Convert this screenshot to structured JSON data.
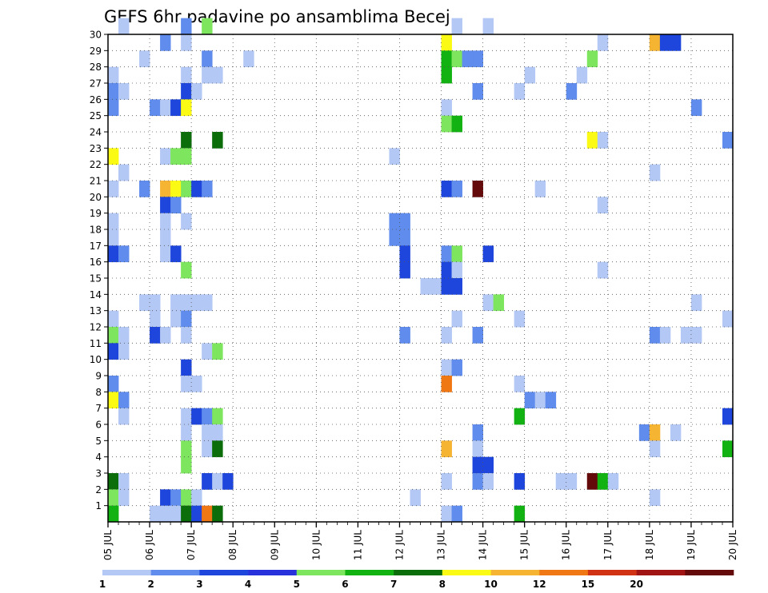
{
  "chart_data": {
    "type": "heatmap",
    "title": "GEFS 6hr padavine po ansamblima Becej",
    "xlabel": "",
    "ylabel": "",
    "x_range": [
      0,
      60
    ],
    "y_range": [
      0,
      30
    ],
    "y_ticks": [
      "1",
      "2",
      "3",
      "4",
      "5",
      "6",
      "7",
      "8",
      "9",
      "10",
      "11",
      "12",
      "13",
      "14",
      "15",
      "16",
      "17",
      "18",
      "19",
      "20",
      "21",
      "22",
      "23",
      "24",
      "25",
      "26",
      "27",
      "28",
      "29",
      "30"
    ],
    "x_ticks": [
      {
        "pos": 0,
        "label": "05 JUL"
      },
      {
        "pos": 4,
        "label": "06 JUL"
      },
      {
        "pos": 8,
        "label": "07 JUL"
      },
      {
        "pos": 12,
        "label": "08 JUL"
      },
      {
        "pos": 16,
        "label": "09 JUL"
      },
      {
        "pos": 20,
        "label": "10 JUL"
      },
      {
        "pos": 24,
        "label": "11 JUL"
      },
      {
        "pos": 28,
        "label": "12 JUL"
      },
      {
        "pos": 32,
        "label": "13 JUL"
      },
      {
        "pos": 36,
        "label": "14 JUL"
      },
      {
        "pos": 40,
        "label": "15 JUL"
      },
      {
        "pos": 44,
        "label": "16 JUL"
      },
      {
        "pos": 48,
        "label": "17 JUL"
      },
      {
        "pos": 52,
        "label": "18 JUL"
      },
      {
        "pos": 56,
        "label": "19 JUL"
      },
      {
        "pos": 60,
        "label": "20 JUL"
      }
    ],
    "grid": true,
    "legend_placement": "bottom",
    "color_scale": {
      "labels": [
        "1",
        "2",
        "3",
        "4",
        "5",
        "6",
        "7",
        "8",
        "10",
        "12",
        "15",
        "20"
      ],
      "colors": [
        "#b4c8f5",
        "#5f8ced",
        "#1e46dc",
        "#2832dc",
        "#7ee65e",
        "#12b212",
        "#0b6e0b",
        "#fafa14",
        "#f5b432",
        "#f07814",
        "#d23214",
        "#a01414",
        "#640a0a"
      ]
    },
    "cells": [
      [
        1,
        30,
        0
      ],
      [
        7,
        30,
        1
      ],
      [
        9,
        30,
        4
      ],
      [
        33,
        30,
        0
      ],
      [
        36,
        30,
        0
      ],
      [
        5,
        29,
        1
      ],
      [
        7,
        29,
        0
      ],
      [
        32,
        29,
        7
      ],
      [
        47,
        29,
        0
      ],
      [
        52,
        29,
        8
      ],
      [
        53,
        29,
        2
      ],
      [
        54,
        29,
        2
      ],
      [
        3,
        28,
        0
      ],
      [
        9,
        28,
        1
      ],
      [
        13,
        28,
        0
      ],
      [
        32,
        28,
        5
      ],
      [
        33,
        28,
        4
      ],
      [
        34,
        28,
        1
      ],
      [
        35,
        28,
        1
      ],
      [
        46,
        28,
        4
      ],
      [
        0,
        27,
        0
      ],
      [
        7,
        27,
        0
      ],
      [
        9,
        27,
        0
      ],
      [
        10,
        27,
        0
      ],
      [
        32,
        27,
        5
      ],
      [
        40,
        27,
        0
      ],
      [
        45,
        27,
        0
      ],
      [
        0,
        26,
        1
      ],
      [
        1,
        26,
        0
      ],
      [
        7,
        26,
        2
      ],
      [
        8,
        26,
        0
      ],
      [
        35,
        26,
        1
      ],
      [
        39,
        26,
        0
      ],
      [
        44,
        26,
        1
      ],
      [
        0,
        25,
        1
      ],
      [
        4,
        25,
        1
      ],
      [
        5,
        25,
        0
      ],
      [
        6,
        25,
        2
      ],
      [
        7,
        25,
        7
      ],
      [
        32,
        25,
        0
      ],
      [
        56,
        25,
        1
      ],
      [
        32,
        24,
        4
      ],
      [
        33,
        24,
        5
      ],
      [
        7,
        23,
        6
      ],
      [
        10,
        23,
        6
      ],
      [
        46,
        23,
        7
      ],
      [
        47,
        23,
        0
      ],
      [
        59,
        23,
        1
      ],
      [
        0,
        22,
        7
      ],
      [
        5,
        22,
        0
      ],
      [
        6,
        22,
        4
      ],
      [
        7,
        22,
        4
      ],
      [
        27,
        22,
        0
      ],
      [
        1,
        21,
        0
      ],
      [
        52,
        21,
        0
      ],
      [
        0,
        20,
        0
      ],
      [
        3,
        20,
        1
      ],
      [
        5,
        20,
        8
      ],
      [
        6,
        20,
        7
      ],
      [
        7,
        20,
        4
      ],
      [
        8,
        20,
        2
      ],
      [
        9,
        20,
        1
      ],
      [
        32,
        20,
        2
      ],
      [
        33,
        20,
        1
      ],
      [
        35,
        20,
        12
      ],
      [
        41,
        20,
        0
      ],
      [
        5,
        19,
        2
      ],
      [
        6,
        19,
        1
      ],
      [
        47,
        19,
        0
      ],
      [
        0,
        18,
        0
      ],
      [
        5,
        18,
        0
      ],
      [
        7,
        18,
        0
      ],
      [
        27,
        18,
        1
      ],
      [
        28,
        18,
        1
      ],
      [
        0,
        17,
        0
      ],
      [
        5,
        17,
        0
      ],
      [
        27,
        17,
        1
      ],
      [
        28,
        17,
        1
      ],
      [
        0,
        16,
        2
      ],
      [
        1,
        16,
        1
      ],
      [
        5,
        16,
        0
      ],
      [
        6,
        16,
        2
      ],
      [
        28,
        16,
        2
      ],
      [
        32,
        16,
        1
      ],
      [
        33,
        16,
        4
      ],
      [
        36,
        16,
        2
      ],
      [
        7,
        15,
        4
      ],
      [
        28,
        15,
        2
      ],
      [
        32,
        15,
        2
      ],
      [
        33,
        15,
        0
      ],
      [
        47,
        15,
        0
      ],
      [
        30,
        14,
        0
      ],
      [
        31,
        14,
        0
      ],
      [
        32,
        14,
        2
      ],
      [
        33,
        14,
        2
      ],
      [
        3,
        13,
        0
      ],
      [
        4,
        13,
        0
      ],
      [
        6,
        13,
        0
      ],
      [
        7,
        13,
        0
      ],
      [
        8,
        13,
        0
      ],
      [
        9,
        13,
        0
      ],
      [
        36,
        13,
        0
      ],
      [
        37,
        13,
        4
      ],
      [
        56,
        13,
        0
      ],
      [
        0,
        12,
        0
      ],
      [
        4,
        12,
        0
      ],
      [
        6,
        12,
        0
      ],
      [
        7,
        12,
        1
      ],
      [
        33,
        12,
        0
      ],
      [
        39,
        12,
        0
      ],
      [
        59,
        12,
        0
      ],
      [
        0,
        11,
        4
      ],
      [
        1,
        11,
        0
      ],
      [
        4,
        11,
        2
      ],
      [
        5,
        11,
        0
      ],
      [
        7,
        11,
        0
      ],
      [
        28,
        11,
        1
      ],
      [
        32,
        11,
        0
      ],
      [
        35,
        11,
        1
      ],
      [
        52,
        11,
        1
      ],
      [
        53,
        11,
        0
      ],
      [
        55,
        11,
        0
      ],
      [
        56,
        11,
        0
      ],
      [
        0,
        10,
        2
      ],
      [
        1,
        10,
        0
      ],
      [
        9,
        10,
        0
      ],
      [
        10,
        10,
        4
      ],
      [
        7,
        9,
        2
      ],
      [
        32,
        9,
        0
      ],
      [
        33,
        9,
        1
      ],
      [
        0,
        8,
        1
      ],
      [
        7,
        8,
        0
      ],
      [
        8,
        8,
        0
      ],
      [
        32,
        8,
        9
      ],
      [
        39,
        8,
        0
      ],
      [
        0,
        7,
        7
      ],
      [
        1,
        7,
        1
      ],
      [
        40,
        7,
        1
      ],
      [
        41,
        7,
        0
      ],
      [
        42,
        7,
        1
      ],
      [
        1,
        6,
        0
      ],
      [
        7,
        6,
        0
      ],
      [
        8,
        6,
        2
      ],
      [
        9,
        6,
        1
      ],
      [
        10,
        6,
        4
      ],
      [
        39,
        6,
        5
      ],
      [
        59,
        6,
        2
      ],
      [
        7,
        5,
        0
      ],
      [
        9,
        5,
        0
      ],
      [
        10,
        5,
        0
      ],
      [
        35,
        5,
        1
      ],
      [
        51,
        5,
        1
      ],
      [
        52,
        5,
        8
      ],
      [
        54,
        5,
        0
      ],
      [
        7,
        4,
        4
      ],
      [
        9,
        4,
        0
      ],
      [
        10,
        4,
        6
      ],
      [
        32,
        4,
        8
      ],
      [
        35,
        4,
        0
      ],
      [
        52,
        4,
        0
      ],
      [
        59,
        4,
        5
      ],
      [
        7,
        3,
        4
      ],
      [
        35,
        3,
        2
      ],
      [
        36,
        3,
        2
      ],
      [
        0,
        2,
        6
      ],
      [
        1,
        2,
        0
      ],
      [
        9,
        2,
        2
      ],
      [
        10,
        2,
        0
      ],
      [
        11,
        2,
        2
      ],
      [
        32,
        2,
        0
      ],
      [
        35,
        2,
        1
      ],
      [
        36,
        2,
        0
      ],
      [
        39,
        2,
        2
      ],
      [
        43,
        2,
        0
      ],
      [
        44,
        2,
        0
      ],
      [
        46,
        2,
        12
      ],
      [
        47,
        2,
        5
      ],
      [
        48,
        2,
        0
      ],
      [
        0,
        1,
        4
      ],
      [
        1,
        1,
        0
      ],
      [
        5,
        1,
        2
      ],
      [
        6,
        1,
        1
      ],
      [
        7,
        1,
        4
      ],
      [
        8,
        1,
        0
      ],
      [
        29,
        1,
        0
      ],
      [
        52,
        1,
        0
      ],
      [
        0,
        0,
        5
      ],
      [
        4,
        0,
        0
      ],
      [
        5,
        0,
        0
      ],
      [
        6,
        0,
        0
      ],
      [
        7,
        0,
        6
      ],
      [
        8,
        0,
        2
      ],
      [
        9,
        0,
        9
      ],
      [
        10,
        0,
        6
      ],
      [
        32,
        0,
        0
      ],
      [
        33,
        0,
        1
      ],
      [
        39,
        0,
        5
      ]
    ]
  }
}
